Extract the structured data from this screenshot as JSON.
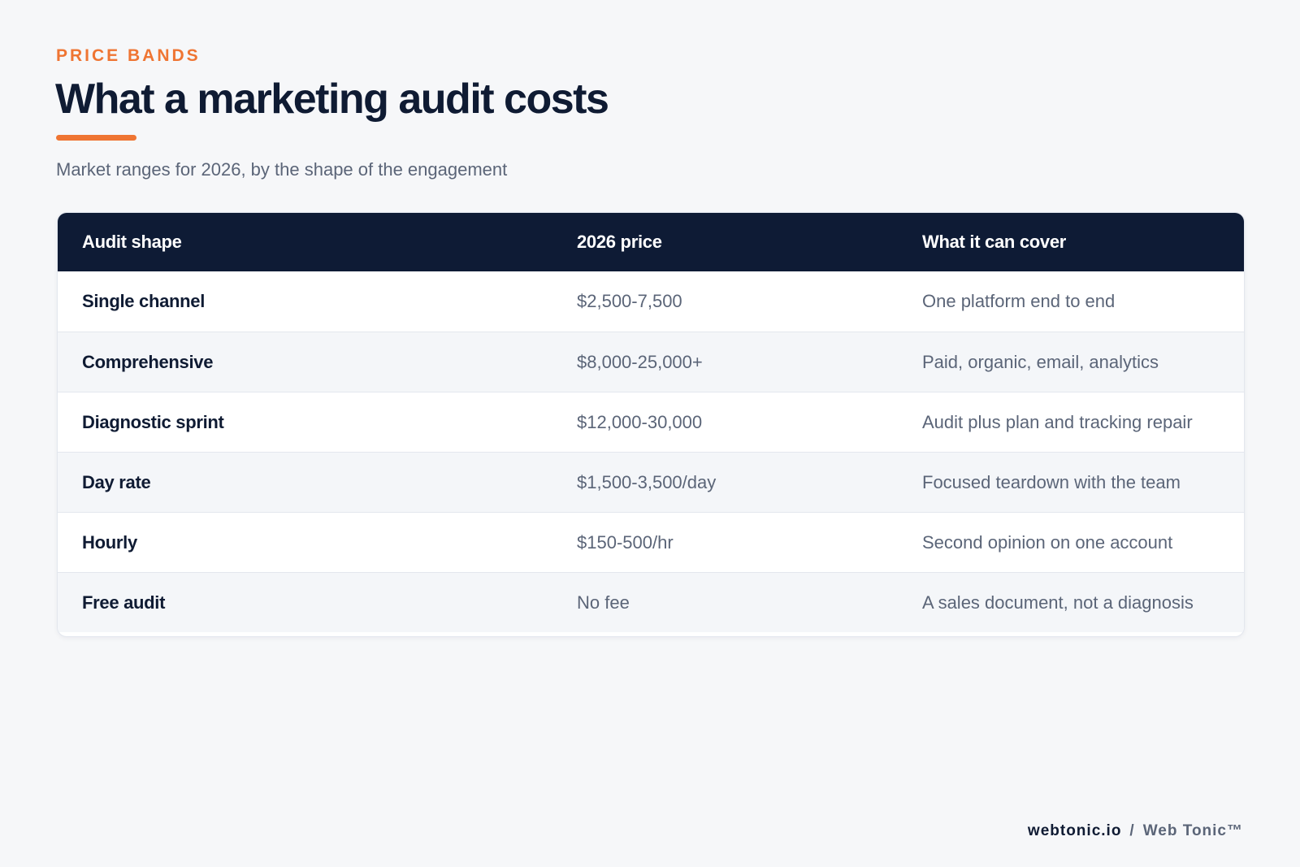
{
  "header": {
    "eyebrow": "PRICE BANDS",
    "title": "What a marketing audit costs",
    "subtitle": "Market ranges for 2026, by the shape of the engagement"
  },
  "table": {
    "columns": [
      "Audit shape",
      "2026 price",
      "What it can cover"
    ],
    "rows": [
      {
        "shape": "Single channel",
        "price": "$2,500-7,500",
        "cover": "One platform end to end"
      },
      {
        "shape": "Comprehensive",
        "price": "$8,000-25,000+",
        "cover": "Paid, organic, email, analytics"
      },
      {
        "shape": "Diagnostic sprint",
        "price": "$12,000-30,000",
        "cover": "Audit plus plan and tracking repair"
      },
      {
        "shape": "Day rate",
        "price": "$1,500-3,500/day",
        "cover": "Focused teardown with the team"
      },
      {
        "shape": "Hourly",
        "price": "$150-500/hr",
        "cover": "Second opinion on one account"
      },
      {
        "shape": "Free audit",
        "price": "No fee",
        "cover": "A sales document, not a diagnosis"
      }
    ]
  },
  "footer": {
    "domain": "webtonic.io",
    "separator": "/",
    "brand": "Web Tonic™"
  },
  "colors": {
    "accent": "#ef7533",
    "navy": "#0e1b35",
    "muted_text": "#5b6578",
    "background": "#f6f7f9"
  }
}
